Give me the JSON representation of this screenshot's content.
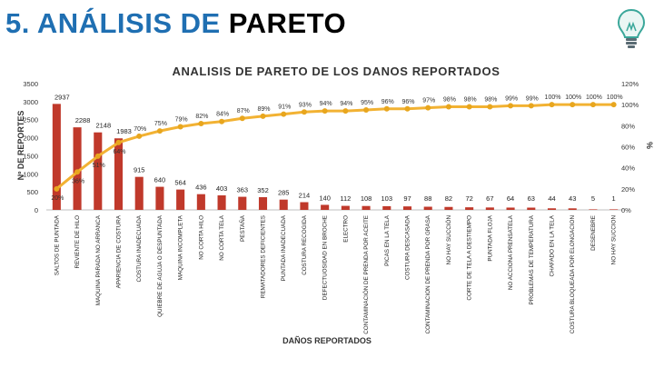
{
  "slide": {
    "title_part1": "5. ANÁLISIS DE",
    "title_part2": "PARETO",
    "logo_icon": "lightbulb-icon"
  },
  "colors": {
    "title_blue": "#1f6fb2",
    "bar": "#c0392b",
    "bar_dark": "#9e2a1c",
    "line": "#f2b233",
    "marker": "#e8a61e"
  },
  "chart_data": {
    "type": "bar",
    "title": "ANALISIS DE PARETO DE LOS DANOS REPORTADOS",
    "xlabel": "DAÑOS REPORTADOS",
    "ylabel": "Nº DE REPORTES",
    "y2label": "%",
    "ylim": [
      0,
      3500
    ],
    "y2lim": [
      0,
      120
    ],
    "yticks": [
      "0",
      "500",
      "1000",
      "1500",
      "2000",
      "2500",
      "3000",
      "3500"
    ],
    "y2ticks": [
      "0%",
      "20%",
      "40%",
      "60%",
      "80%",
      "100%",
      "120%"
    ],
    "categories": [
      "SALTOS DE PUNTADA",
      "REVIENTE DE HILO",
      "MAQUINA PARADA NO ARRANCA",
      "APARIENCIA DE COSTURA",
      "COSTURA INADECUADA",
      "QUIEBRE DE AGUJA O DESPUNTADA",
      "MAQUINA INCOMPLETA",
      "NO CORTA HILO",
      "NO CORTA TELA",
      "PESTAÑA",
      "REMATADORES DEFICIENTES",
      "PUNTADA INADECUADA",
      "COSTURA RECOGIDA",
      "DEFECTUOSIDAD EN BROCHE",
      "ELECTRO",
      "CONTAMINACIÓN DE PRENDA POR ACEITE",
      "PICAS EN LA TELA",
      "COSTURA DESCASADA",
      "CONTAMINACION DE PRENDA POR GRASA",
      "NO HAY SUCCIÓN",
      "CORTE DE TELA A DESTIEMPO",
      "PUNTADA FLOJA",
      "NO ACCIONA PRENSATELA",
      "PROBLEMAS DE TEMPERATURA",
      "CHAFADO EN LA TELA",
      "COSTURA BLOQUEADA POR ELONGACION",
      "DESENEBRE",
      "NO HAY SUCCION"
    ],
    "values": [
      2937,
      2288,
      2148,
      1983,
      915,
      640,
      564,
      436,
      403,
      363,
      352,
      285,
      214,
      140,
      112,
      108,
      103,
      97,
      88,
      82,
      72,
      67,
      64,
      63,
      44,
      43,
      5,
      1
    ],
    "value_labels": [
      "2937",
      "2288",
      "2148",
      "1983",
      "915",
      "640",
      "564",
      "436",
      "403",
      "363",
      "352",
      "285",
      "214",
      "140",
      "112",
      "108",
      "103",
      "97",
      "88",
      "82",
      "72",
      "67",
      "64",
      "63",
      "44",
      "43",
      "5",
      "1"
    ],
    "cumulative_pct": [
      20,
      36,
      51,
      64,
      70,
      75,
      79,
      82,
      84,
      87,
      89,
      91,
      93,
      94,
      94,
      95,
      96,
      96,
      97,
      98,
      98,
      98,
      99,
      99,
      100,
      100,
      100,
      100
    ],
    "cumulative_labels": [
      "20%",
      "36%",
      "51%",
      "64%",
      "70%",
      "75%",
      "79%",
      "82%",
      "84%",
      "87%",
      "89%",
      "91%",
      "93%",
      "94%",
      "94%",
      "95%",
      "96%",
      "96%",
      "97%",
      "98%",
      "98%",
      "98%",
      "99%",
      "99%",
      "100%",
      "100%",
      "100%",
      "100%"
    ],
    "series": [
      {
        "name": "Nº de reportes",
        "axis": "left",
        "kind": "bar"
      },
      {
        "name": "% acumulado",
        "axis": "right",
        "kind": "line"
      }
    ],
    "grid": false,
    "legend": "none"
  }
}
